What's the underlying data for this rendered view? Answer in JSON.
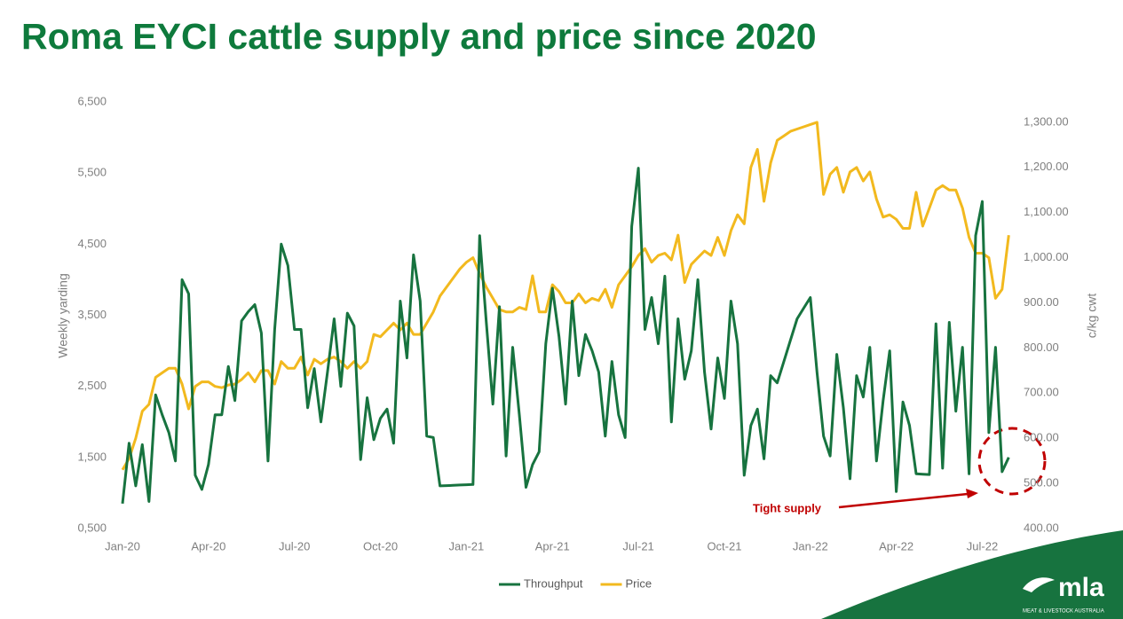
{
  "chart_data": {
    "type": "line",
    "title": "Roma EYCI cattle supply and price since 2020",
    "y_label": "Weekly yarding",
    "y2_label": "c/kg cwt",
    "annotation": "Tight supply",
    "legend": "bottom",
    "categories": [
      "Jan-20",
      null,
      null,
      null,
      null,
      null,
      null,
      null,
      null,
      null,
      null,
      null,
      null,
      "Apr-20",
      null,
      null,
      null,
      null,
      null,
      null,
      null,
      null,
      null,
      null,
      null,
      null,
      "Jul-20",
      null,
      null,
      null,
      null,
      null,
      null,
      null,
      null,
      null,
      null,
      null,
      null,
      "Oct-20",
      null,
      null,
      null,
      null,
      null,
      null,
      null,
      null,
      null,
      null,
      null,
      null,
      "Jan-21",
      null,
      null,
      null,
      null,
      null,
      null,
      null,
      null,
      null,
      null,
      null,
      null,
      "Apr-21",
      null,
      null,
      null,
      null,
      null,
      null,
      null,
      null,
      null,
      null,
      null,
      null,
      "Jul-21",
      null,
      null,
      null,
      null,
      null,
      null,
      null,
      null,
      null,
      null,
      null,
      null,
      "Oct-21",
      null,
      null,
      null,
      null,
      null,
      null,
      null,
      null,
      null,
      null,
      null,
      null,
      "Jan-22",
      null,
      null,
      null,
      null,
      null,
      null,
      null,
      null,
      null,
      null,
      null,
      null,
      "Apr-22",
      null,
      null,
      null,
      null,
      null,
      null,
      null,
      null,
      null,
      null,
      null,
      null,
      "Jul-22",
      null,
      null,
      null,
      null
    ],
    "series": [
      {
        "name": "Throughput",
        "color": "#17733f",
        "axis": "y",
        "values": [
          850,
          1700,
          1100,
          1680,
          880,
          2380,
          2100,
          1850,
          1450,
          4000,
          3800,
          1250,
          1050,
          1400,
          2100,
          2100,
          2780,
          2300,
          3420,
          3550,
          3650,
          3250,
          1450,
          3300,
          4500,
          4200,
          3300,
          3300,
          2200,
          2750,
          2000,
          2700,
          3450,
          2500,
          3530,
          3350,
          1470,
          2340,
          1750,
          2050,
          2180,
          1700,
          3700,
          2900,
          4350,
          3700,
          1800,
          1780,
          1100,
          1104,
          1108,
          1112,
          1116,
          1120,
          4620,
          3400,
          2250,
          3620,
          1520,
          3050,
          2100,
          1080,
          1400,
          1580,
          3100,
          3880,
          3200,
          2250,
          3700,
          2650,
          3230,
          3000,
          2700,
          1800,
          2850,
          2100,
          1780,
          4750,
          5570,
          3300,
          3750,
          3100,
          4050,
          2000,
          3450,
          2600,
          3000,
          4000,
          2700,
          1900,
          2900,
          2330,
          3700,
          3100,
          1250,
          1950,
          2180,
          1480,
          2650,
          2550,
          2850,
          3150,
          3450,
          3600,
          3750,
          2700,
          1800,
          1520,
          2950,
          2200,
          1200,
          2650,
          2350,
          3050,
          1450,
          2300,
          3000,
          1020,
          2280,
          1950,
          1270,
          1265,
          1260,
          3380,
          1350,
          3400,
          2150,
          3050,
          1270,
          4620,
          5100,
          1850,
          3050,
          1300,
          1500
        ]
      },
      {
        "name": "Price",
        "color": "#f2b91e",
        "axis": "y2",
        "values": [
          530,
          555,
          600,
          660,
          675,
          735,
          745,
          755,
          755,
          720,
          665,
          715,
          725,
          725,
          715,
          712,
          718,
          720,
          730,
          745,
          725,
          750,
          750,
          720,
          770,
          755,
          755,
          780,
          740,
          775,
          765,
          775,
          780,
          770,
          755,
          770,
          755,
          770,
          830,
          825,
          840,
          855,
          840,
          855,
          830,
          830,
          855,
          880,
          915,
          935,
          955,
          975,
          990,
          1000,
          965,
          935,
          910,
          885,
          880,
          880,
          890,
          885,
          960,
          880,
          880,
          940,
          925,
          900,
          900,
          920,
          900,
          910,
          905,
          930,
          890,
          940,
          960,
          980,
          1005,
          1020,
          990,
          1005,
          1010,
          995,
          1050,
          945,
          985,
          1000,
          1015,
          1005,
          1045,
          1005,
          1060,
          1095,
          1075,
          1200,
          1240,
          1125,
          1210,
          1260,
          1270,
          1280,
          1285,
          1290,
          1295,
          1300,
          1140,
          1185,
          1200,
          1145,
          1190,
          1200,
          1170,
          1190,
          1130,
          1090,
          1095,
          1085,
          1065,
          1065,
          1145,
          1070,
          1110,
          1150,
          1160,
          1150,
          1150,
          1110,
          1045,
          1010,
          1010,
          1000,
          910,
          930,
          1050
        ]
      }
    ],
    "ylim": [
      500,
      6500
    ],
    "yticks": [
      {
        "value": 500,
        "label": "0,500"
      },
      {
        "value": 1500,
        "label": "1,500"
      },
      {
        "value": 2500,
        "label": "2,500"
      },
      {
        "value": 3500,
        "label": "3,500"
      },
      {
        "value": 4500,
        "label": "4,500"
      },
      {
        "value": 5500,
        "label": "5,500"
      },
      {
        "value": 6500,
        "label": "6,500"
      }
    ],
    "y2lim": [
      400,
      1345
    ],
    "y2ticks": [
      {
        "value": 400,
        "label": "400.00"
      },
      {
        "value": 500,
        "label": "500.00"
      },
      {
        "value": 600,
        "label": "600.00"
      },
      {
        "value": 700,
        "label": "700.00"
      },
      {
        "value": 800,
        "label": "800.00"
      },
      {
        "value": 900,
        "label": "900.00"
      },
      {
        "value": 1000,
        "label": "1,000.00"
      },
      {
        "value": 1100,
        "label": "1,100.00"
      },
      {
        "value": 1200,
        "label": "1,200.00"
      },
      {
        "value": 1300,
        "label": "1,300.00"
      }
    ]
  },
  "logo": {
    "name": "mla",
    "tagline": "MEAT & LIVESTOCK AUSTRALIA"
  }
}
